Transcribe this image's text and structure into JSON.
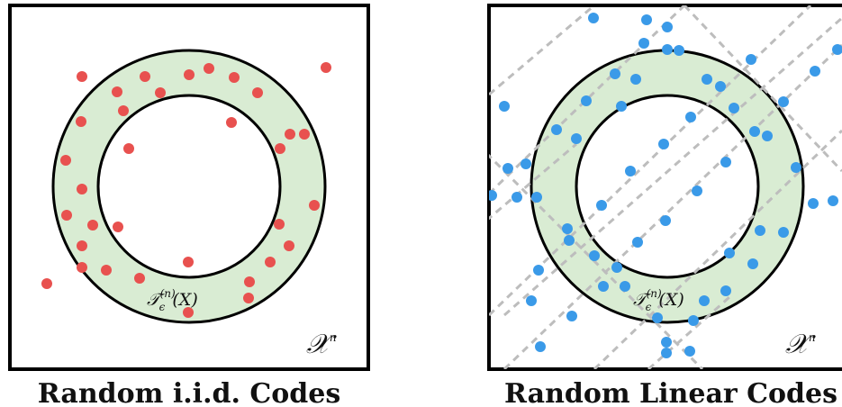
{
  "colors": {
    "ring_fill": "#d9ecd3",
    "iid_point": "#e8514f",
    "linear_point": "#3a9ae8",
    "line_dash": "#bdbdbd",
    "border": "#000000"
  },
  "panels": [
    {
      "caption": "Random i.i.d. Codes",
      "set_label_base": "𝒳",
      "set_label_exp": "n",
      "ring_label_base": "𝒯",
      "ring_label_sub": "ϵ",
      "ring_label_sup": "(n)",
      "ring_label_arg": "(X)",
      "point_color_key": "iid_point"
    },
    {
      "caption": "Random Linear Codes",
      "set_label_base": "𝒳",
      "set_label_exp": "n",
      "ring_label_base": "𝒯",
      "ring_label_sub": "ϵ",
      "ring_label_sup": "(n)",
      "ring_label_arg": "(X)",
      "point_color_key": "linear_point"
    }
  ]
}
